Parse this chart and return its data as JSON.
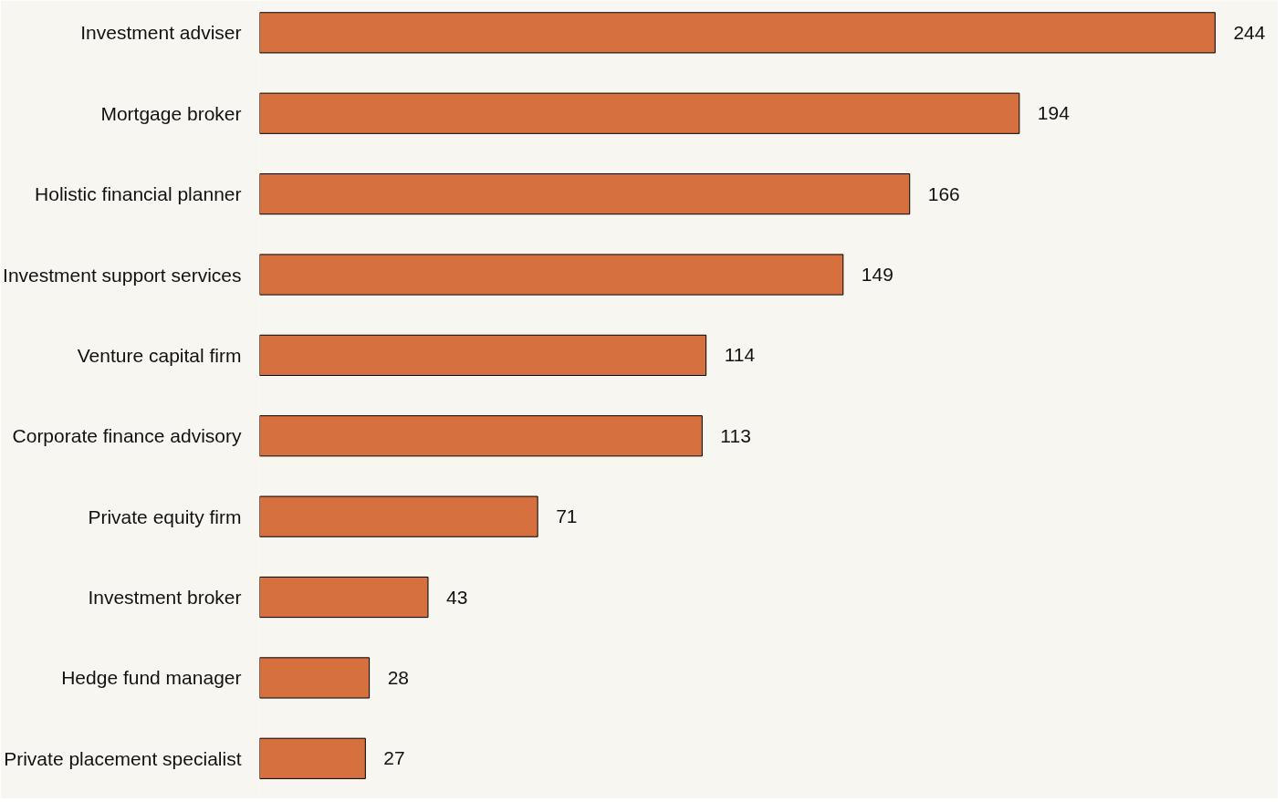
{
  "chart_data": {
    "type": "bar",
    "orientation": "horizontal",
    "data_labels": true,
    "tick_labels": "y",
    "categories": [
      "Investment adviser",
      "Mortgage broker",
      "Holistic financial planner",
      "Investment support services",
      "Venture capital firm",
      "Corporate finance advisory",
      "Private equity firm",
      "Investment broker",
      "Hedge fund manager",
      "Private placement specialist"
    ],
    "values": [
      244,
      194,
      166,
      149,
      114,
      113,
      71,
      43,
      28,
      27
    ],
    "color": "#d6703f"
  }
}
